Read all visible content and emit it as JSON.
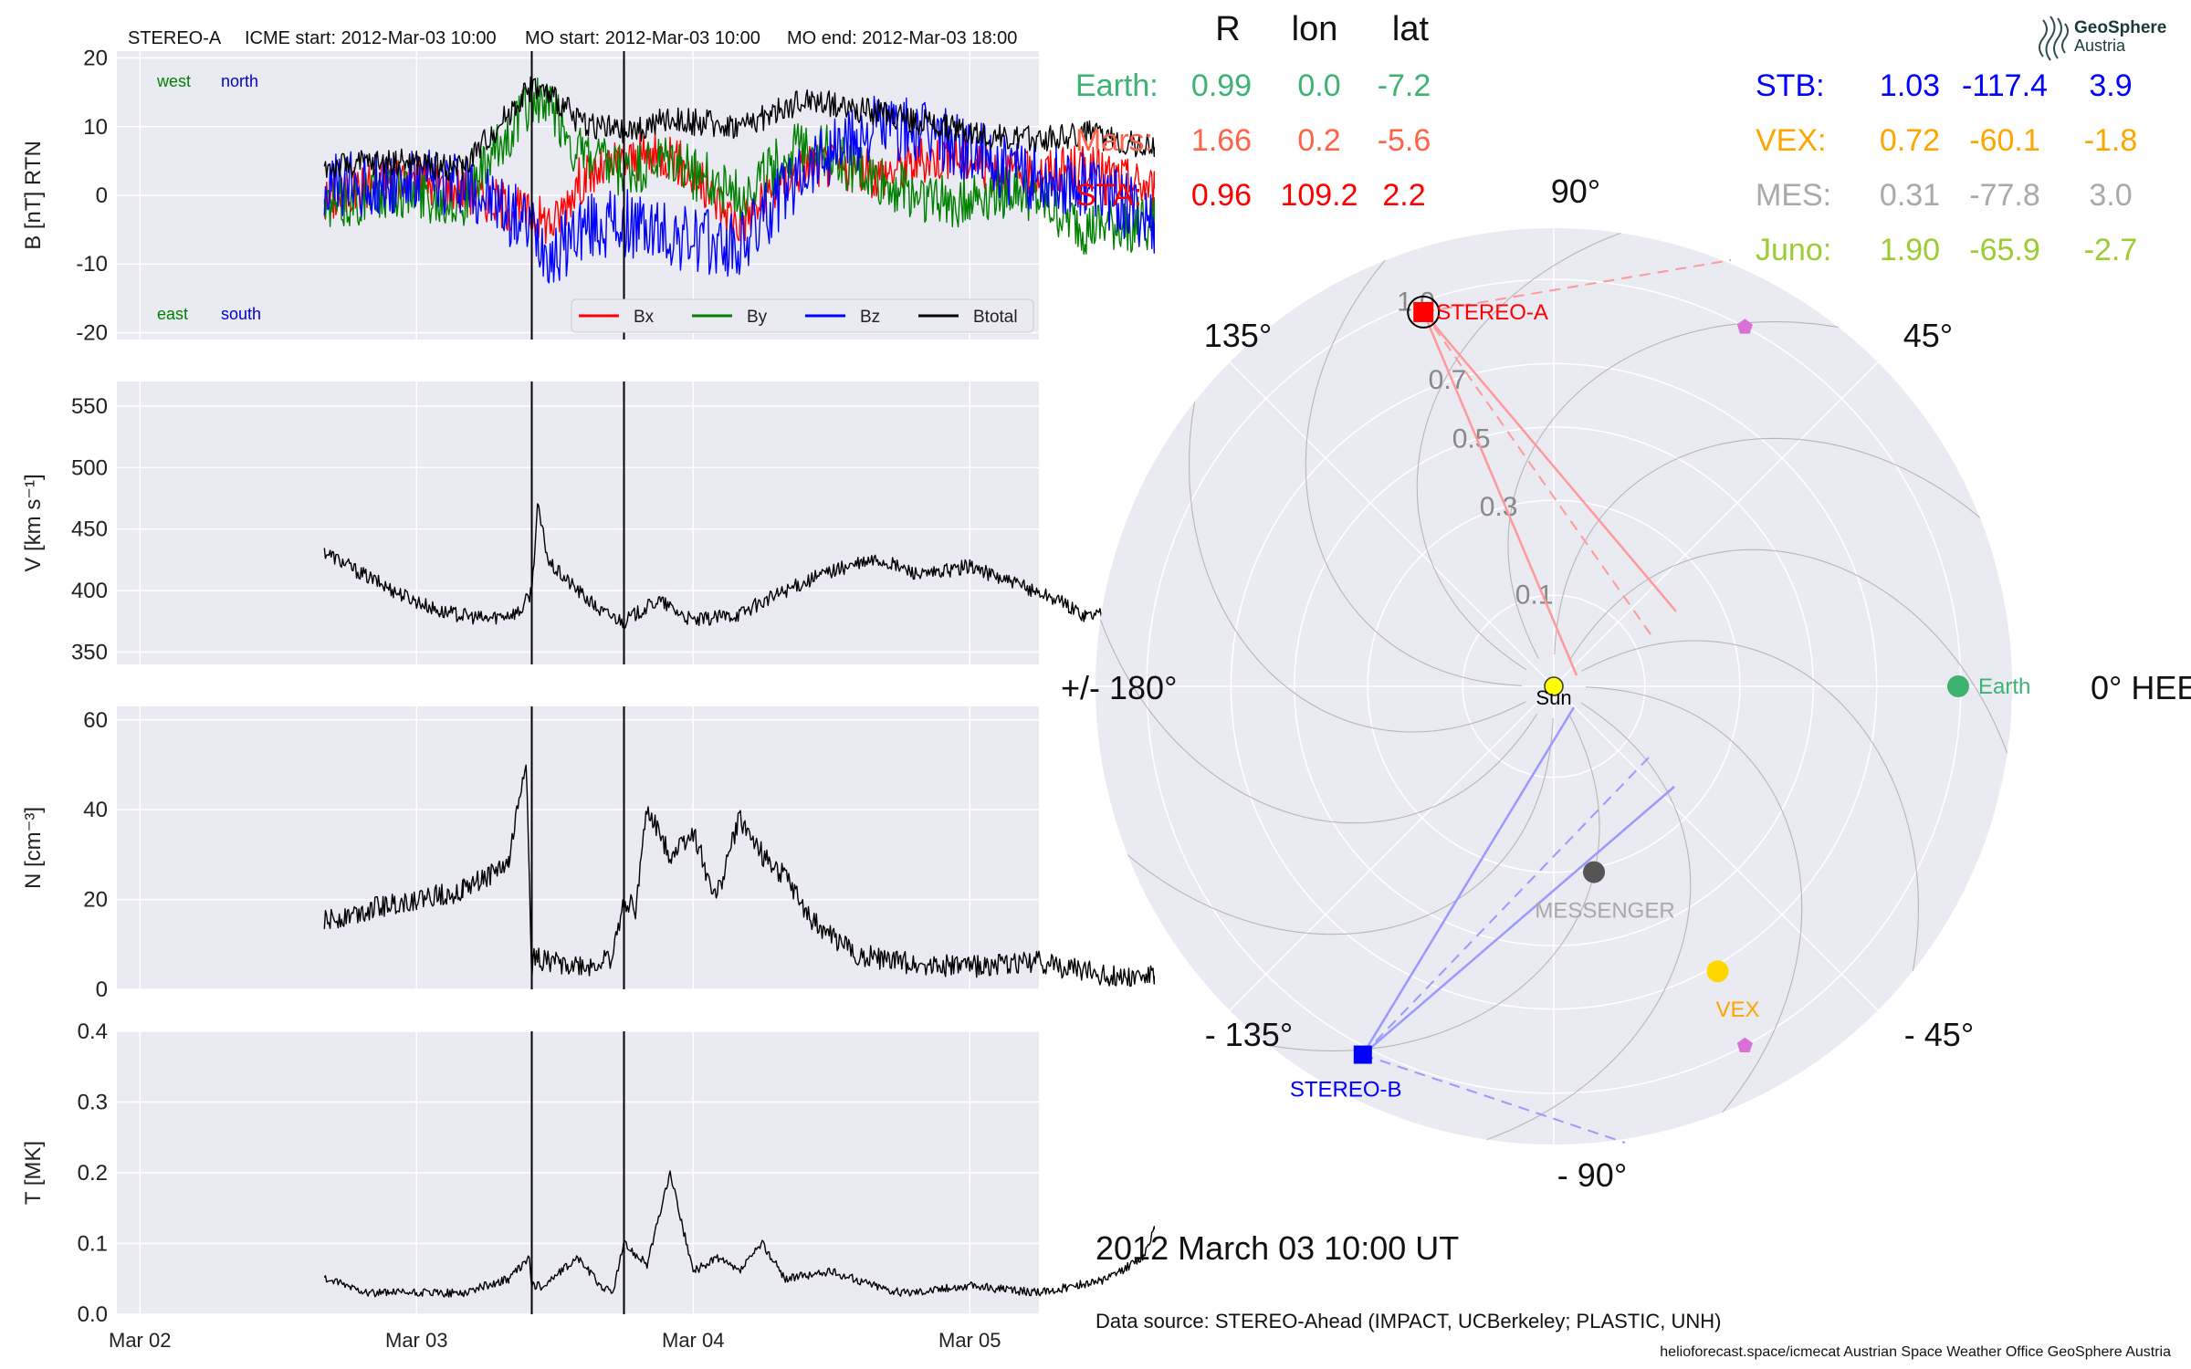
{
  "header": {
    "spacecraft": "STEREO-A",
    "icme_start": "ICME start: 2012-Mar-03 10:00",
    "mo_start": "MO start: 2012-Mar-03 10:00",
    "mo_end": "MO end: 2012-Mar-03 18:00"
  },
  "logo": {
    "line1": "GeoSphere",
    "line2": "Austria"
  },
  "position_table": {
    "headers": [
      "R",
      "lon",
      "lat"
    ],
    "left": [
      {
        "name": "Earth:",
        "r": "0.99",
        "lon": "0.0",
        "lat": "-7.2",
        "color": "#3cb371"
      },
      {
        "name": "Mars:",
        "r": "1.66",
        "lon": "0.2",
        "lat": "-5.6",
        "color": "#ff6347"
      },
      {
        "name": "STA:",
        "r": "0.96",
        "lon": "109.2",
        "lat": "2.2",
        "color": "#ff0000"
      }
    ],
    "right": [
      {
        "name": "STB:",
        "r": "1.03",
        "lon": "-117.4",
        "lat": "3.9",
        "color": "#0000ff"
      },
      {
        "name": "VEX:",
        "r": "0.72",
        "lon": "-60.1",
        "lat": "-1.8",
        "color": "#ffa500"
      },
      {
        "name": "MES:",
        "r": "0.31",
        "lon": "-77.8",
        "lat": "3.0",
        "color": "#a9a9a9"
      },
      {
        "name": "Juno:",
        "r": "1.90",
        "lon": "-65.9",
        "lat": "-2.7",
        "color": "#9acd32"
      }
    ]
  },
  "date_label": "2012 March 03  10:00 UT",
  "data_source": "Data source: STEREO-Ahead (IMPACT, UCBerkeley; PLASTIC, UNH)",
  "credits": "helioforecast.space/icmecat   Austrian Space Weather Office   GeoSphere Austria",
  "chart_data": [
    {
      "type": "line",
      "panel": "magnetic-field",
      "ylabel": "B [nT] RTN",
      "ylim": [
        -21,
        21
      ],
      "yticks": [
        -20,
        -10,
        0,
        10,
        20
      ],
      "x_dates": [
        "Mar 02",
        "Mar 03",
        "Mar 04",
        "Mar 05"
      ],
      "xlim": [
        "2012-03-01 22:00",
        "2012-03-05 06:00"
      ],
      "data_start": "2012-03-02 16:00",
      "event_markers": [
        "2012-03-03 10:00",
        "2012-03-03 18:00"
      ],
      "annotations": {
        "top_left": "west",
        "top_right": "north",
        "bottom_left": "east",
        "bottom_right": "south"
      },
      "annotation_colors": {
        "west": "#008000",
        "north": "#0000cd",
        "east": "#008000",
        "south": "#0000cd"
      },
      "legend": {
        "position": "bottom-right"
      },
      "series": [
        {
          "name": "Bx",
          "color": "#ff0000",
          "x_hours": [
            0,
            6,
            12,
            18,
            20,
            22,
            26,
            30,
            36,
            42,
            48,
            54,
            60,
            66,
            72
          ],
          "values": [
            -1,
            3,
            1,
            -3,
            -4,
            2,
            5,
            6,
            -4,
            5,
            3,
            6,
            3,
            4,
            1
          ]
        },
        {
          "name": "By",
          "color": "#008000",
          "x_hours": [
            0,
            6,
            12,
            18,
            20,
            22,
            26,
            30,
            36,
            42,
            48,
            54,
            60,
            66,
            72
          ],
          "values": [
            -2,
            1,
            -1,
            14,
            12,
            6,
            3,
            5,
            0,
            8,
            2,
            -1,
            1,
            -5,
            -4
          ]
        },
        {
          "name": "Bz",
          "color": "#0000ff",
          "x_hours": [
            0,
            6,
            12,
            18,
            20,
            22,
            26,
            30,
            36,
            42,
            48,
            54,
            60,
            66,
            72
          ],
          "values": [
            1,
            2,
            2,
            -5,
            -9,
            -5,
            -4,
            -6,
            -8,
            5,
            10,
            8,
            3,
            2,
            -4
          ]
        },
        {
          "name": "Btotal",
          "color": "#000000",
          "x_hours": [
            0,
            6,
            12,
            18,
            20,
            22,
            26,
            30,
            36,
            42,
            48,
            54,
            60,
            66,
            72
          ],
          "values": [
            4,
            5,
            4,
            16,
            14,
            11,
            9,
            11,
            10,
            14,
            12,
            10,
            8,
            9,
            7
          ]
        }
      ]
    },
    {
      "type": "line",
      "panel": "velocity",
      "ylabel": "V [km s⁻¹]",
      "ylim": [
        340,
        570
      ],
      "yticks": [
        350,
        400,
        450,
        500,
        550
      ],
      "series": [
        {
          "name": "",
          "color": "#000000",
          "x_hours": [
            0,
            3,
            6,
            10,
            14,
            17,
            18,
            18.5,
            19.5,
            22,
            24,
            26,
            29,
            32,
            36,
            40,
            44,
            48,
            52,
            56,
            60,
            63,
            66,
            68,
            70,
            72
          ],
          "values": [
            432,
            415,
            400,
            383,
            377,
            383,
            400,
            468,
            422,
            400,
            383,
            375,
            392,
            375,
            381,
            400,
            416,
            425,
            412,
            420,
            405,
            395,
            380,
            383,
            410,
            430
          ]
        }
      ]
    },
    {
      "type": "line",
      "panel": "density",
      "ylabel": "N [cm⁻³]",
      "ylim": [
        0,
        63
      ],
      "yticks": [
        0,
        20,
        40,
        60
      ],
      "series": [
        {
          "name": "",
          "color": "#000000",
          "x_hours": [
            0,
            4,
            8,
            12,
            16,
            17.5,
            18,
            18.2,
            20,
            23,
            25,
            26,
            27,
            28,
            30,
            32,
            34,
            36,
            38,
            40,
            42,
            46,
            50,
            56,
            62,
            68,
            72
          ],
          "values": [
            15,
            18,
            20,
            22,
            28,
            52,
            3,
            7,
            6,
            5,
            7,
            20,
            18,
            40,
            30,
            35,
            20,
            38,
            30,
            25,
            16,
            8,
            6,
            5,
            6,
            3,
            3
          ]
        }
      ]
    },
    {
      "type": "line",
      "panel": "temperature",
      "ylabel": "T [MK]",
      "ylim": [
        0,
        0.4
      ],
      "yticks": [
        0.0,
        0.1,
        0.2,
        0.3,
        0.4
      ],
      "series": [
        {
          "name": "",
          "color": "#000000",
          "x_hours": [
            0,
            4,
            8,
            12,
            16,
            17.8,
            18,
            19,
            22,
            24,
            25,
            26,
            28,
            30,
            32,
            34,
            36,
            38,
            40,
            44,
            50,
            56,
            62,
            68,
            71,
            72
          ],
          "values": [
            0.05,
            0.03,
            0.03,
            0.03,
            0.05,
            0.08,
            0.04,
            0.04,
            0.08,
            0.04,
            0.03,
            0.1,
            0.07,
            0.2,
            0.06,
            0.08,
            0.06,
            0.1,
            0.05,
            0.06,
            0.03,
            0.04,
            0.03,
            0.05,
            0.08,
            0.12
          ]
        }
      ]
    },
    {
      "type": "scatter",
      "panel": "polar-orbit-plot",
      "coordinate_system": "HEEQ",
      "radial_ticks": [
        "0.1",
        "0.3",
        "0.5",
        "0.7",
        "1.0"
      ],
      "angle_labels": {
        "a0": "0° HEEQ",
        "a45": "45°",
        "a90": "90°",
        "a135": "135°",
        "a180": "+/- 180°",
        "am135": "- 135°",
        "am90": "- 90°",
        "am45": "- 45°"
      },
      "bodies": [
        {
          "name": "Sun",
          "r": 0.0,
          "lon": 0.0,
          "color": "#ffff00"
        },
        {
          "name": "Earth",
          "r": 0.99,
          "lon": 0.0,
          "color": "#3cb371"
        },
        {
          "name": "STEREO-A",
          "r": 0.96,
          "lon": 109.2,
          "color": "#ff0000"
        },
        {
          "name": "STEREO-B",
          "r": 1.03,
          "lon": -117.4,
          "color": "#0000ff"
        },
        {
          "name": "VEX",
          "r": 0.72,
          "lon": -60.1,
          "color": "#ffd700"
        },
        {
          "name": "MESSENGER",
          "r": 0.31,
          "lon": -77.8,
          "color": "#555555"
        }
      ],
      "unlabeled_markers": [
        {
          "r": 1.0,
          "lon": 62,
          "color": "#da70d6"
        },
        {
          "r": 1.0,
          "lon": -62,
          "color": "#da70d6"
        }
      ]
    }
  ]
}
